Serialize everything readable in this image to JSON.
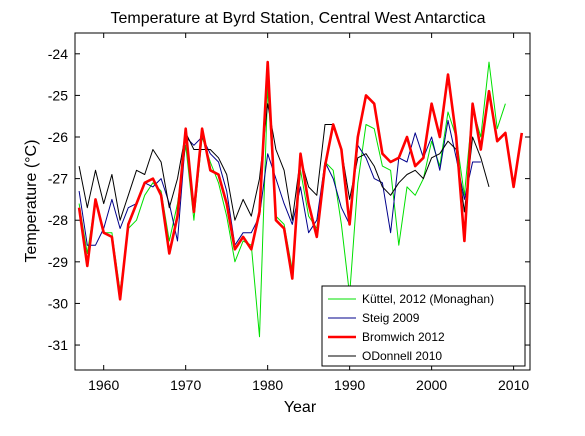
{
  "chart_data": {
    "type": "line",
    "title": "Temperature at Byrd Station, Central West Antarctica",
    "xlabel": "Year",
    "ylabel": "Temperature (°C)",
    "xlim": [
      1956.5,
      2012
    ],
    "ylim": [
      -31.6,
      -23.5
    ],
    "xticks": [
      1960,
      1970,
      1980,
      1990,
      2000,
      2010
    ],
    "yticks": [
      -31,
      -30,
      -29,
      -28,
      -27,
      -26,
      -25,
      -24
    ],
    "grid": false,
    "legend_position": "bottom-right",
    "series": [
      {
        "name": "Küttel, 2012 (Monaghan)",
        "color": "#00e000",
        "x": [
          1957,
          1958,
          1959,
          1960,
          1961,
          1962,
          1963,
          1964,
          1965,
          1966,
          1967,
          1968,
          1969,
          1970,
          1971,
          1972,
          1973,
          1974,
          1975,
          1976,
          1977,
          1978,
          1979,
          1980,
          1981,
          1982,
          1983,
          1984,
          1985,
          1986,
          1987,
          1988,
          1989,
          1990,
          1991,
          1992,
          1993,
          1994,
          1995,
          1996,
          1997,
          1998,
          1999,
          2000,
          2001,
          2002,
          2003,
          2004,
          2005,
          2006,
          2007,
          2008,
          2009
        ],
        "y": [
          -27.6,
          -28.8,
          -27.5,
          -28.3,
          -28.3,
          -29.7,
          -28.2,
          -28.0,
          -27.4,
          -27.1,
          -27.3,
          -28.5,
          -27.6,
          -26.2,
          -28.0,
          -26.0,
          -26.6,
          -27.1,
          -27.9,
          -29.0,
          -28.5,
          -28.6,
          -30.8,
          -24.8,
          -27.9,
          -28.1,
          -29.2,
          -26.8,
          -27.9,
          -28.2,
          -26.6,
          -26.8,
          -28.1,
          -29.8,
          -27.1,
          -25.7,
          -25.8,
          -26.7,
          -26.8,
          -28.6,
          -27.2,
          -27.4,
          -27.0,
          -26.1,
          -26.7,
          -25.4,
          -26.0,
          -27.4,
          -25.3,
          -26.0,
          -24.2,
          -25.8,
          -25.2
        ]
      },
      {
        "name": "Steig 2009",
        "color": "#00008b",
        "x": [
          1957,
          1958,
          1959,
          1960,
          1961,
          1962,
          1963,
          1964,
          1965,
          1966,
          1967,
          1968,
          1969,
          1970,
          1971,
          1972,
          1973,
          1974,
          1975,
          1976,
          1977,
          1978,
          1979,
          1980,
          1981,
          1982,
          1983,
          1984,
          1985,
          1986,
          1987,
          1988,
          1989,
          1990,
          1991,
          1992,
          1993,
          1994,
          1995,
          1996,
          1997,
          1998,
          1999,
          2000,
          2001,
          2002,
          2003,
          2004,
          2005,
          2006
        ],
        "y": [
          -27.3,
          -28.6,
          -28.6,
          -28.2,
          -27.5,
          -28.2,
          -27.7,
          -27.6,
          -27.1,
          -27.2,
          -27.0,
          -27.6,
          -28.5,
          -26.0,
          -26.2,
          -26.0,
          -26.4,
          -26.6,
          -27.3,
          -28.6,
          -28.3,
          -28.3,
          -27.9,
          -26.4,
          -27.0,
          -27.6,
          -28.1,
          -27.2,
          -28.3,
          -28.0,
          -26.6,
          -27.0,
          -27.7,
          -28.1,
          -26.2,
          -26.5,
          -27.0,
          -27.1,
          -28.3,
          -26.5,
          -26.6,
          -25.9,
          -26.5,
          -26.0,
          -26.8,
          -25.6,
          -26.5,
          -27.5,
          -26.6,
          -26.6
        ]
      },
      {
        "name": "Bromwich 2012",
        "color": "#ff0000",
        "x": [
          1957,
          1958,
          1959,
          1960,
          1961,
          1962,
          1963,
          1964,
          1965,
          1966,
          1967,
          1968,
          1969,
          1970,
          1971,
          1972,
          1973,
          1974,
          1975,
          1976,
          1977,
          1978,
          1979,
          1980,
          1981,
          1982,
          1983,
          1984,
          1985,
          1986,
          1987,
          1988,
          1989,
          1990,
          1991,
          1992,
          1993,
          1994,
          1995,
          1996,
          1997,
          1998,
          1999,
          2000,
          2001,
          2002,
          2003,
          2004,
          2005,
          2006,
          2007,
          2008,
          2009,
          2010,
          2011
        ],
        "y": [
          -27.7,
          -29.1,
          -27.5,
          -28.3,
          -28.4,
          -29.9,
          -28.1,
          -27.6,
          -27.1,
          -27.0,
          -27.4,
          -28.8,
          -27.9,
          -25.8,
          -27.8,
          -25.8,
          -26.8,
          -26.9,
          -27.6,
          -28.7,
          -28.4,
          -28.7,
          -27.8,
          -24.2,
          -28.0,
          -28.2,
          -29.4,
          -26.4,
          -27.6,
          -28.4,
          -26.7,
          -25.7,
          -26.3,
          -28.1,
          -26.0,
          -25.0,
          -25.2,
          -26.4,
          -26.6,
          -26.5,
          -26.0,
          -26.7,
          -26.5,
          -25.2,
          -26.0,
          -24.5,
          -26.0,
          -28.5,
          -25.2,
          -26.3,
          -24.9,
          -26.1,
          -25.9,
          -27.2,
          -25.9
        ]
      },
      {
        "name": "ODonnell 2010",
        "color": "#000000",
        "x": [
          1957,
          1958,
          1959,
          1960,
          1961,
          1962,
          1963,
          1964,
          1965,
          1966,
          1967,
          1968,
          1969,
          1970,
          1971,
          1972,
          1973,
          1974,
          1975,
          1976,
          1977,
          1978,
          1979,
          1980,
          1981,
          1982,
          1983,
          1984,
          1985,
          1986,
          1987,
          1988,
          1989,
          1990,
          1991,
          1992,
          1993,
          1994,
          1995,
          1996,
          1997,
          1998,
          1999,
          2000,
          2001,
          2002,
          2003,
          2004,
          2005,
          2006,
          2007
        ],
        "y": [
          -26.7,
          -27.7,
          -26.8,
          -27.6,
          -26.9,
          -28.0,
          -27.4,
          -26.8,
          -26.9,
          -26.3,
          -26.6,
          -27.7,
          -27.0,
          -25.9,
          -26.3,
          -26.3,
          -26.3,
          -26.5,
          -26.9,
          -28.0,
          -27.5,
          -27.9,
          -27.0,
          -25.2,
          -26.3,
          -26.8,
          -28.0,
          -26.5,
          -27.2,
          -27.4,
          -25.7,
          -25.7,
          -26.3,
          -27.5,
          -26.5,
          -26.4,
          -26.7,
          -27.2,
          -27.4,
          -27.1,
          -26.9,
          -26.8,
          -27.0,
          -26.5,
          -26.4,
          -26.1,
          -26.3,
          -27.8,
          -26.0,
          -26.5,
          -27.2
        ]
      }
    ]
  }
}
